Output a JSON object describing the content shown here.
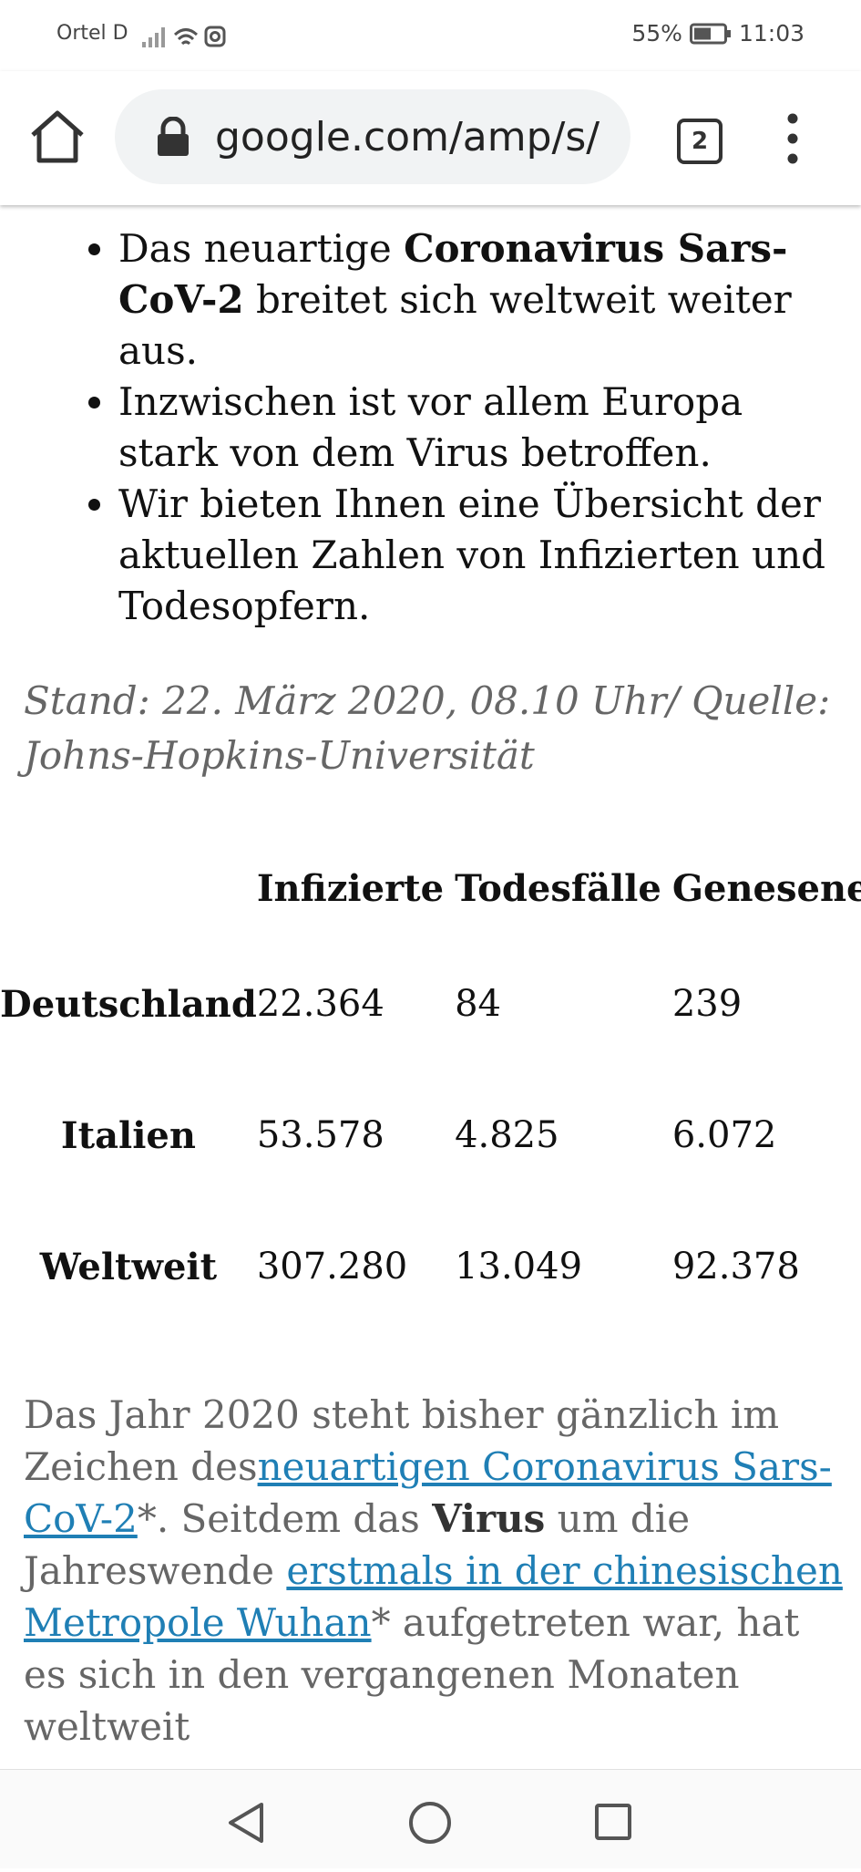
{
  "status_bar": {
    "carrier": "Ortel D",
    "battery": "55%",
    "time": "11:03"
  },
  "browser": {
    "url": "google.com/amp/s/",
    "tab_count": "2"
  },
  "article": {
    "bullets": [
      [
        {
          "text": "Das neuartige "
        },
        {
          "text": "Coronavirus Sars-CoV-2",
          "style": "bold"
        },
        {
          "text": " breitet sich weltweit weiter aus."
        }
      ],
      [
        {
          "text": "Inzwischen ist vor allem Europa stark von dem Virus betroffen."
        }
      ],
      [
        {
          "text": "Wir bieten Ihnen eine Übersicht der aktuellen Zahlen von Infizierten und Todesopfern."
        }
      ]
    ],
    "stand": "Stand: 22. März 2020, 08.10 Uhr/ Quelle: Johns-Hopkins-Universität",
    "table": {
      "columns": [
        "Infizierte",
        "Todesfälle",
        "Genesene"
      ],
      "rows": [
        {
          "label": "Deutschland",
          "cells": [
            "22.364",
            "84",
            "239"
          ]
        },
        {
          "label": "Italien",
          "cells": [
            "53.578",
            "4.825",
            "6.072"
          ]
        },
        {
          "label": "Weltweit",
          "cells": [
            "307.280",
            "13.049",
            "92.378"
          ]
        }
      ]
    },
    "paragraph": [
      {
        "text": "Das Jahr 2020 steht bisher gänzlich im Zeichen des"
      },
      {
        "text": "neuartigen Coronavirus Sars-CoV-2",
        "style": "link"
      },
      {
        "text": "*. Seitdem das "
      },
      {
        "text": "Virus",
        "style": "bold"
      },
      {
        "text": " um die Jahreswende "
      },
      {
        "text": "erstmals in der chinesischen Metropole Wuhan",
        "style": "link"
      },
      {
        "text": "* aufgetreten war, hat es sich in den vergangenen Monaten weltweit"
      }
    ]
  }
}
